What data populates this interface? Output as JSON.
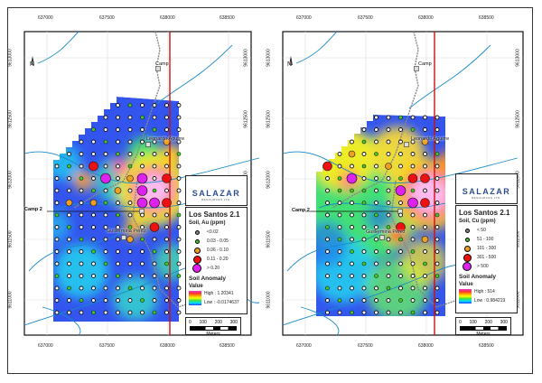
{
  "maps": [
    {
      "id": "au",
      "x_ticks": [
        "637000",
        "637500",
        "638000",
        "638500"
      ],
      "y_ticks": [
        "9613000",
        "9612500",
        "9612000",
        "9611500",
        "9611000"
      ],
      "places": {
        "camp": "Camp",
        "camp2": "Camp 2",
        "leonardo": "Leonardo Aguirre",
        "guillermina": "Guillermina Perez"
      },
      "north": "N",
      "logo": {
        "name": "SALAZAR",
        "sub": "RESOURCES LTD."
      },
      "legend": {
        "title": "Los Santos 2.1",
        "subtitle": "Soil, Au (ppm)",
        "classes": [
          "<0.02",
          "0.03 - 0.05",
          "0.06 - 0.10",
          "0.11 - 0.20",
          "> 0.20"
        ],
        "anomaly_title": "Soil Anomaly",
        "value_label": "Value",
        "high": "High : 1.20341",
        "low": "Low : -0.0174637"
      },
      "scale": {
        "ticks": [
          "0",
          "100",
          "200",
          "300"
        ],
        "unit": "Meters"
      }
    },
    {
      "id": "cu",
      "x_ticks": [
        "637000",
        "637500",
        "638000",
        "638500"
      ],
      "y_ticks": [
        "9613000",
        "9612500",
        "9612000",
        "9611500",
        "9611000"
      ],
      "places": {
        "camp": "Camp",
        "camp2": "Camp 2",
        "leonardo": "Leonardo Aguirre",
        "guillermina": "Guillermina Perez"
      },
      "north": "N",
      "logo": {
        "name": "SALAZAR",
        "sub": "RESOURCES LTD."
      },
      "legend": {
        "title": "Los Santos 2.1",
        "subtitle": "Soil, Cu (ppm)",
        "classes": [
          "< 50",
          "51 - 100",
          "101 - 300",
          "301 - 500",
          "> 500"
        ],
        "anomaly_title": "Soil Anomaly",
        "value_label": "Value",
        "high": "High : 514",
        "low": "Low : 0.984219"
      },
      "scale": {
        "ticks": [
          "0",
          "100",
          "200",
          "300"
        ],
        "unit": "Meters"
      }
    }
  ],
  "class_colors": [
    "#888888",
    "#44cc22",
    "#f0a020",
    "#ee1111",
    "#dd22ee"
  ]
}
